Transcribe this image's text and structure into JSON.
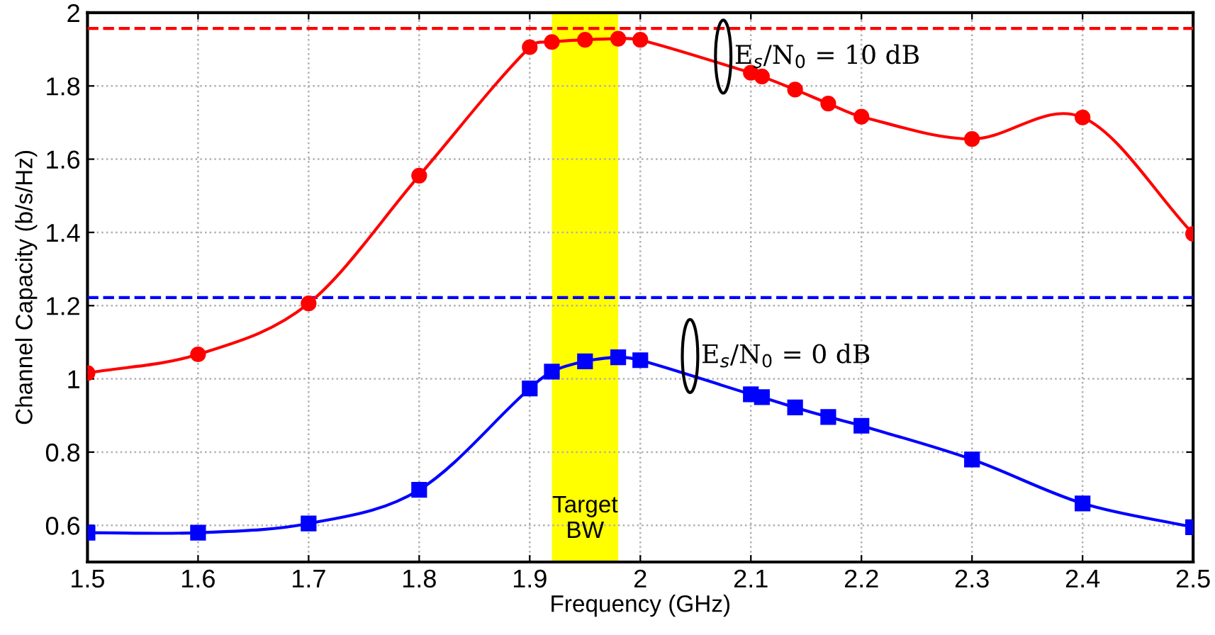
{
  "chart_data": {
    "type": "line",
    "xlabel": "Frequency (GHz)",
    "ylabel": "Channel Capacity (b/s/Hz)",
    "xlim": [
      1.5,
      2.5
    ],
    "xticks": [
      1.5,
      1.6,
      1.7,
      1.8,
      1.9,
      2,
      2.1,
      2.2,
      2.3,
      2.4,
      2.5
    ],
    "ylim": [
      0.5,
      2
    ],
    "yticks": [
      0.6,
      0.8,
      1,
      1.2,
      1.4,
      1.6,
      1.8,
      2
    ],
    "grid": true,
    "line_style": "solid",
    "series": [
      {
        "color": "#ff0000",
        "marker": "circle",
        "x": [
          1.5,
          1.6,
          1.7,
          1.8,
          1.9,
          1.92,
          1.95,
          1.98,
          2.0,
          2.1,
          2.11,
          2.14,
          2.17,
          2.2,
          2.3,
          2.4,
          2.5
        ],
        "values": [
          1.016,
          1.067,
          1.206,
          1.555,
          1.906,
          1.92,
          1.926,
          1.929,
          1.926,
          1.836,
          1.826,
          1.79,
          1.752,
          1.716,
          1.655,
          1.714,
          1.396
        ]
      },
      {
        "color": "#0000ff",
        "marker": "square",
        "x": [
          1.5,
          1.6,
          1.7,
          1.8,
          1.9,
          1.92,
          1.95,
          1.98,
          2.0,
          2.1,
          2.11,
          2.14,
          2.17,
          2.2,
          2.3,
          2.4,
          2.5
        ],
        "values": [
          0.58,
          0.58,
          0.605,
          0.697,
          0.974,
          1.02,
          1.048,
          1.059,
          1.051,
          0.958,
          0.95,
          0.922,
          0.896,
          0.872,
          0.78,
          0.66,
          0.595
        ]
      }
    ],
    "ref_lines": [
      {
        "axis": "y",
        "value": 1.957,
        "color": "#ff0000",
        "line_style": "dashed"
      },
      {
        "axis": "y",
        "value": 1.222,
        "color": "#0000ff",
        "line_style": "dashed"
      }
    ],
    "bands": [
      {
        "axis": "x",
        "from": 1.92,
        "to": 1.98,
        "label": "Target\nBW",
        "color": "#ffff00"
      }
    ],
    "annotations": [
      "E$_{s}$/N$_{0}$ = 10 dB",
      "E$_{s}$/N$_{0}$ = 0 dB"
    ]
  }
}
